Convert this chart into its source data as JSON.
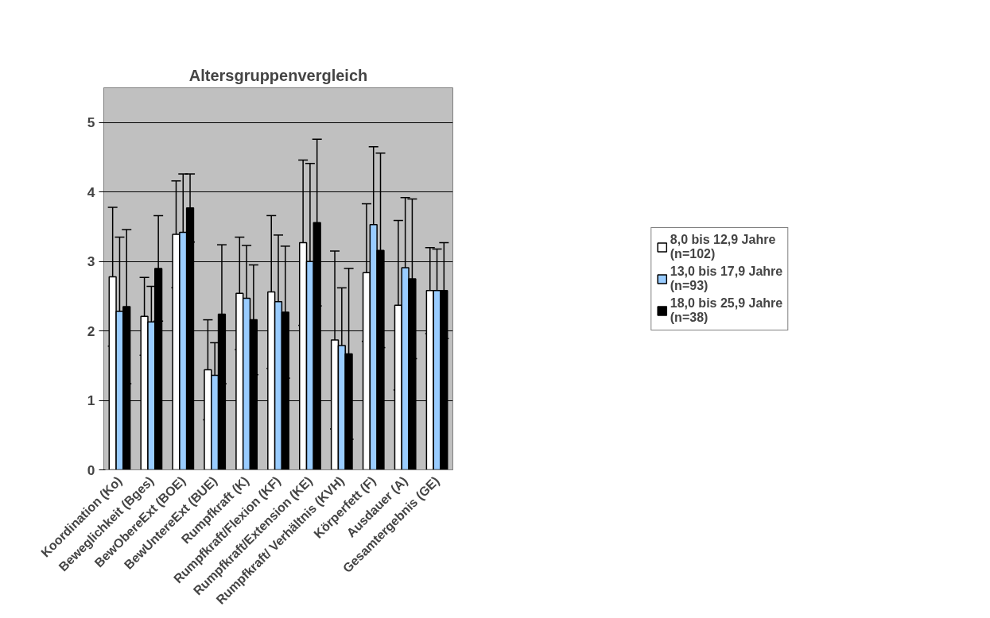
{
  "chart_data": {
    "type": "bar",
    "title": "Altersgruppenvergleich",
    "categories": [
      "Koordination (Ko)",
      "Beweglichkeit (Bges)",
      "BewObereExt (BOE)",
      "BewUntereExt (BUE)",
      "Rumpfkraft (K)",
      "Rumpfkraft/Flexion (KF)",
      "Rumpfkraft/Extension (KE)",
      "Rumpfkraft/ Verhältnis (KVH)",
      "Körperfett (F)",
      "Ausdauer (A)",
      "Gesamtergebnis (GE)"
    ],
    "series": [
      {
        "name": "8,0 bis 12,9 Jahre (n=102)",
        "color": "#ffffff",
        "values": [
          2.78,
          2.21,
          3.39,
          1.44,
          2.54,
          2.56,
          3.27,
          1.87,
          2.84,
          2.37,
          2.58
        ],
        "errors": [
          1.0,
          0.56,
          0.77,
          0.72,
          0.81,
          1.1,
          1.19,
          1.28,
          0.99,
          1.22,
          0.62
        ]
      },
      {
        "name": "13,0 bis 17,9 Jahre (n=93)",
        "color": "#99ccff",
        "values": [
          2.28,
          2.13,
          3.42,
          1.36,
          2.47,
          2.42,
          3.0,
          1.79,
          3.53,
          2.91,
          2.58
        ],
        "errors": [
          1.07,
          0.51,
          0.84,
          0.47,
          0.76,
          0.96,
          1.41,
          0.83,
          1.12,
          1.01,
          0.6
        ]
      },
      {
        "name": "18,0 bis 25,9 Jahre (n=38)",
        "color": "#000000",
        "values": [
          2.35,
          2.9,
          3.77,
          2.24,
          2.16,
          2.27,
          3.56,
          1.67,
          3.16,
          2.75,
          2.58
        ],
        "errors": [
          1.11,
          0.76,
          0.49,
          1.0,
          0.79,
          0.95,
          1.2,
          1.23,
          1.4,
          1.15,
          0.69
        ]
      }
    ],
    "ylim": [
      0,
      5.5
    ],
    "yticks": [
      0,
      1,
      2,
      3,
      4,
      5
    ],
    "grid": "y",
    "legend": "right"
  }
}
